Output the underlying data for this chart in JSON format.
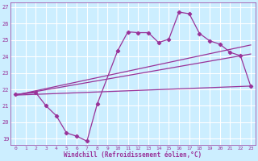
{
  "xlabel": "Windchill (Refroidissement éolien,°C)",
  "bg_color": "#cceeff",
  "line_color": "#993399",
  "grid_color": "#ffffff",
  "xlim": [
    -0.5,
    23.5
  ],
  "ylim": [
    18.6,
    27.3
  ],
  "xticks": [
    0,
    1,
    2,
    3,
    4,
    5,
    6,
    7,
    8,
    9,
    10,
    11,
    12,
    13,
    14,
    15,
    16,
    17,
    18,
    19,
    20,
    21,
    22,
    23
  ],
  "yticks": [
    19,
    20,
    21,
    22,
    23,
    24,
    25,
    26,
    27
  ],
  "hours_main": [
    0,
    2,
    3,
    4,
    5,
    6,
    7,
    8,
    10,
    11,
    12,
    13,
    14,
    15,
    16,
    17,
    18,
    19,
    20,
    21,
    22,
    23
  ],
  "line1": [
    21.7,
    21.8,
    21.0,
    20.4,
    19.35,
    19.15,
    18.85,
    21.1,
    24.35,
    25.5,
    25.45,
    25.45,
    24.85,
    25.05,
    26.7,
    26.6,
    25.4,
    24.95,
    24.75,
    24.25,
    24.05,
    22.2
  ],
  "line2_x": [
    0,
    23
  ],
  "line2_y": [
    21.65,
    24.7
  ],
  "line3_x": [
    0,
    23
  ],
  "line3_y": [
    21.65,
    22.2
  ],
  "line4_x": [
    0,
    23
  ],
  "line4_y": [
    21.65,
    24.15
  ]
}
